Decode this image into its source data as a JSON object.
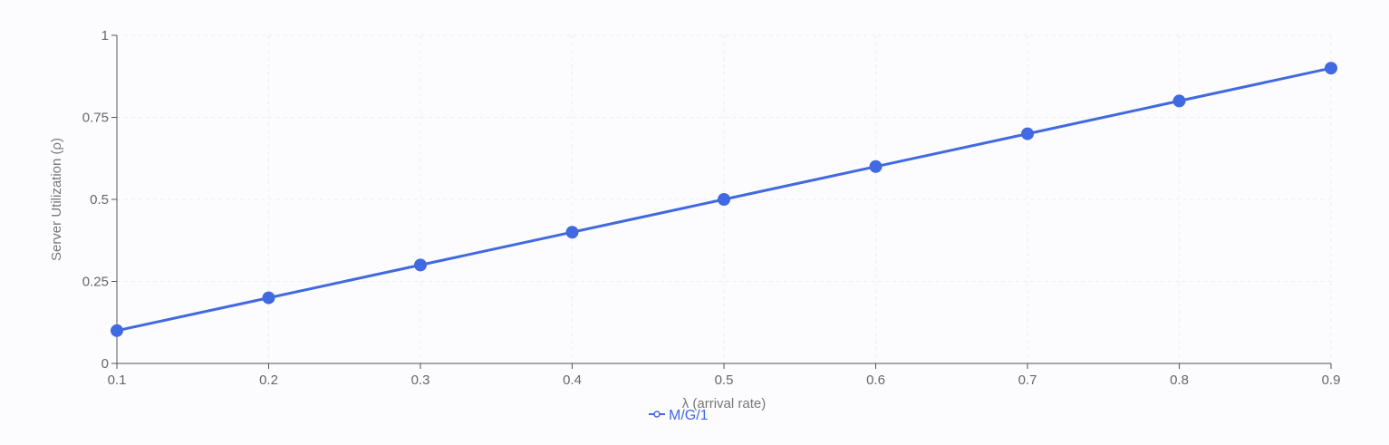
{
  "chart_data": {
    "type": "line",
    "title": "",
    "xlabel": "λ (arrival rate)",
    "ylabel": "Server Utilization (ρ)",
    "x": [
      0.1,
      0.2,
      0.3,
      0.4,
      0.5,
      0.6,
      0.7,
      0.8,
      0.9
    ],
    "series": [
      {
        "name": "M/G/1",
        "values": [
          0.1,
          0.2,
          0.3,
          0.4,
          0.5,
          0.6,
          0.7,
          0.8,
          0.9
        ],
        "color": "#4169e1",
        "marker": "circle"
      }
    ],
    "xlim": [
      0.1,
      0.9
    ],
    "ylim": [
      0,
      1
    ],
    "xticks": [
      "0.1",
      "0.2",
      "0.3",
      "0.4",
      "0.5",
      "0.6",
      "0.7",
      "0.8",
      "0.9"
    ],
    "yticks": [
      "0",
      "0.25",
      "0.5",
      "0.75",
      "1"
    ],
    "grid": true,
    "legend_position": "bottom-center",
    "colors": {
      "axis": "#555555",
      "grid": "#eeeeee",
      "series": "#4169e1"
    }
  }
}
